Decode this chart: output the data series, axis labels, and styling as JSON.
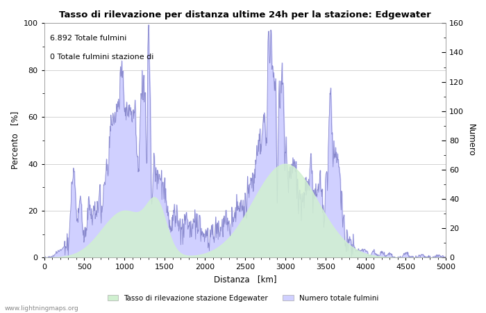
{
  "title": "Tasso di rilevazione per distanza ultime 24h per la stazione: Edgewater",
  "xlabel": "Distanza   [km]",
  "ylabel_left": "Percento   [%]",
  "ylabel_right": "Numero",
  "annotation_line1": "6.892 Totale fulmini",
  "annotation_line2": "0 Totale fulmini stazione di",
  "legend_label_green": "Tasso di rilevazione stazione Edgewater",
  "legend_label_blue": "Numero totale fulmini",
  "watermark": "www.lightningmaps.org",
  "xlim": [
    0,
    5000
  ],
  "ylim_left": [
    0,
    100
  ],
  "ylim_right": [
    0,
    160
  ],
  "fill_color_blue": "#d0d0ff",
  "line_color_blue": "#8888cc",
  "fill_color_green": "#d0f0d0",
  "line_color_green": "#88aa88",
  "background_color": "#ffffff",
  "grid_color": "#cccccc"
}
